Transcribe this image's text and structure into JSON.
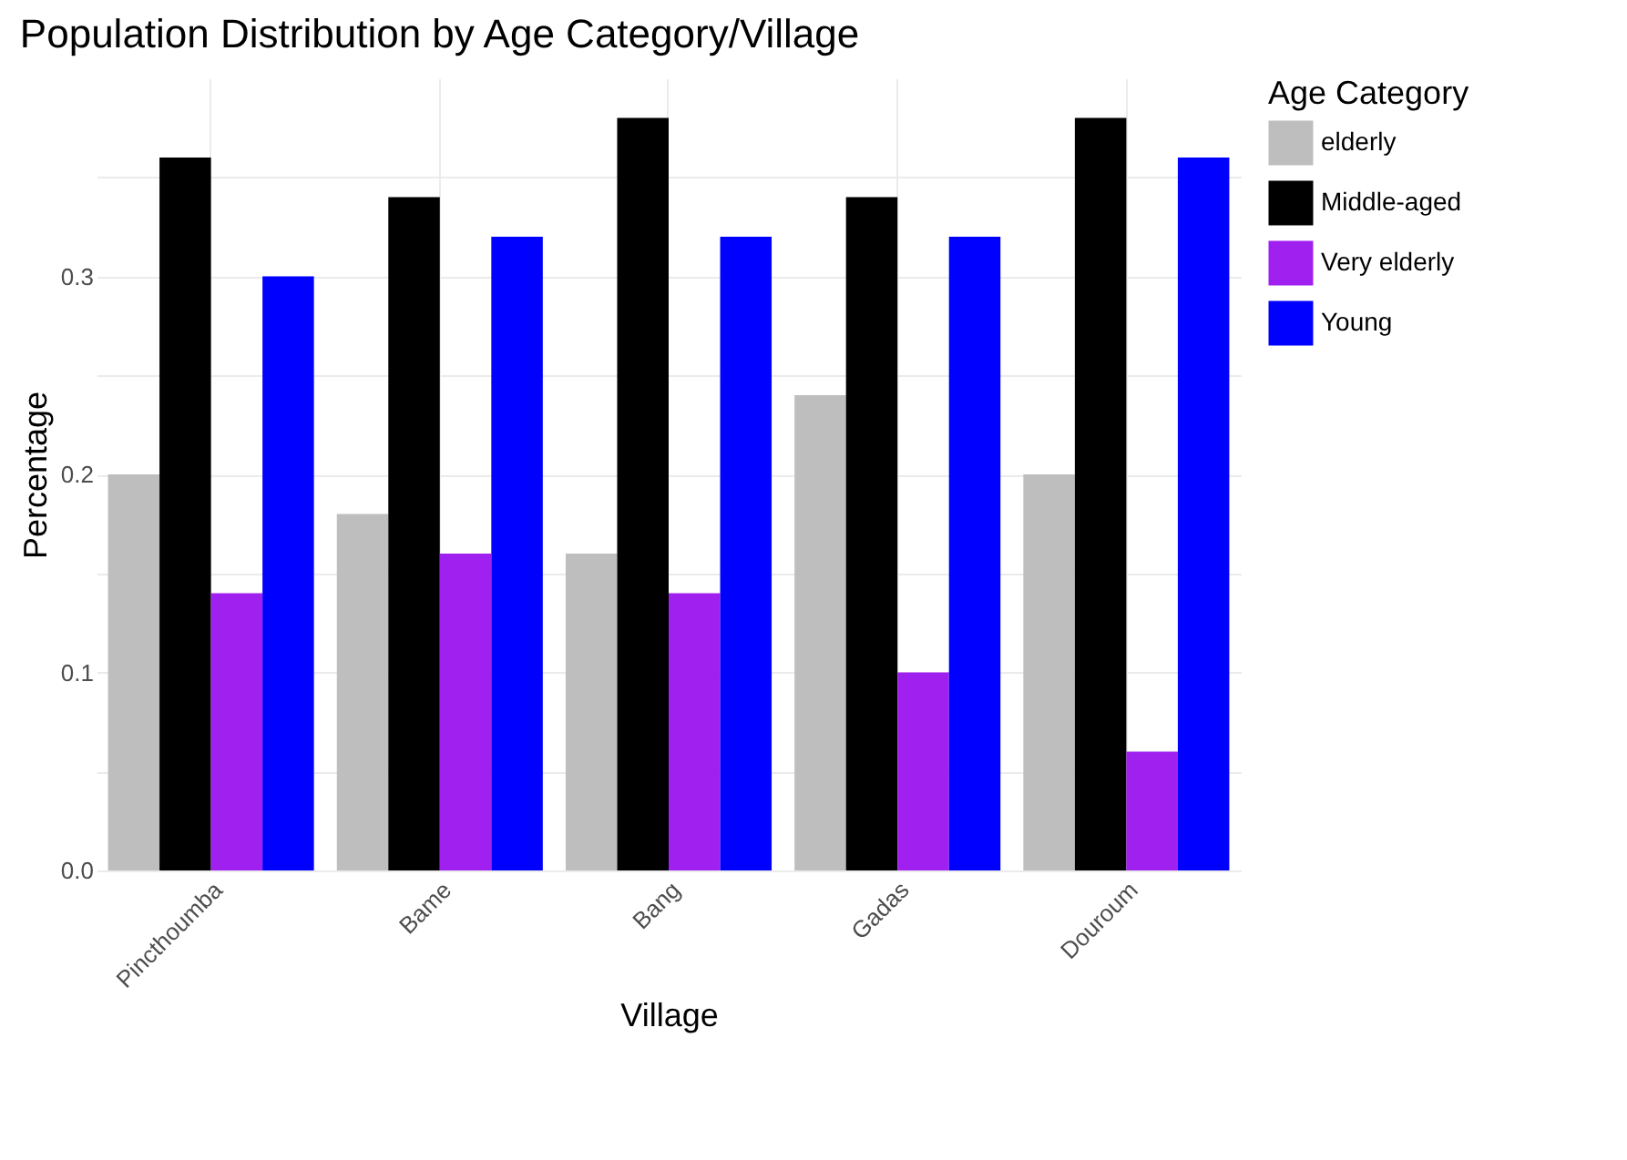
{
  "chart_data": {
    "type": "bar",
    "title": "Population Distribution by Age Category/Village",
    "xlabel": "Village",
    "ylabel": "Percentage",
    "legend_title": "Age Category",
    "categories": [
      "Pincthoumba",
      "Bame",
      "Bang",
      "Gadas",
      "Douroum"
    ],
    "series": [
      {
        "name": "elderly",
        "color": "#bebebe",
        "values": [
          0.2,
          0.18,
          0.16,
          0.24,
          0.2
        ]
      },
      {
        "name": "Middle-aged",
        "color": "#000000",
        "values": [
          0.36,
          0.34,
          0.38,
          0.34,
          0.38
        ]
      },
      {
        "name": "Very elderly",
        "color": "#a020f0",
        "values": [
          0.14,
          0.16,
          0.14,
          0.1,
          0.06
        ]
      },
      {
        "name": "Young",
        "color": "#0000ff",
        "values": [
          0.3,
          0.32,
          0.32,
          0.32,
          0.36
        ]
      }
    ],
    "ylim": [
      0,
      0.4
    ],
    "yticks": [
      "0.0",
      {
        "value": 0.05,
        "label": null
      },
      0.1,
      {
        "value": 0.15,
        "label": null
      },
      0.2,
      {
        "value": 0.25,
        "label": null
      },
      0.3,
      {
        "value": 0.35,
        "label": null
      }
    ],
    "grid": true,
    "legend": "right"
  }
}
